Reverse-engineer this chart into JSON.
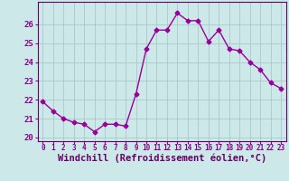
{
  "x": [
    0,
    1,
    2,
    3,
    4,
    5,
    6,
    7,
    8,
    9,
    10,
    11,
    12,
    13,
    14,
    15,
    16,
    17,
    18,
    19,
    20,
    21,
    22,
    23
  ],
  "y": [
    21.9,
    21.4,
    21.0,
    20.8,
    20.7,
    20.3,
    20.7,
    20.7,
    20.6,
    22.3,
    24.7,
    25.7,
    25.7,
    26.6,
    26.2,
    26.2,
    25.1,
    25.7,
    24.7,
    24.6,
    24.0,
    23.6,
    22.9,
    22.6
  ],
  "line_color": "#990099",
  "marker": "D",
  "marker_size": 2.5,
  "bg_color": "#cce8e8",
  "grid_color": "#aac8c8",
  "xlabel": "Windchill (Refroidissement éolien,°C)",
  "ylim": [
    19.8,
    27.2
  ],
  "yticks": [
    20,
    21,
    22,
    23,
    24,
    25,
    26
  ],
  "xlim": [
    -0.5,
    23.5
  ],
  "xticks": [
    0,
    1,
    2,
    3,
    4,
    5,
    6,
    7,
    8,
    9,
    10,
    11,
    12,
    13,
    14,
    15,
    16,
    17,
    18,
    19,
    20,
    21,
    22,
    23
  ],
  "tick_color": "#880088",
  "label_color": "#660066",
  "axis_color": "#660066",
  "xlabel_fontsize": 7.5,
  "xtick_fontsize": 5.5,
  "ytick_fontsize": 6.5,
  "linewidth": 1.0
}
